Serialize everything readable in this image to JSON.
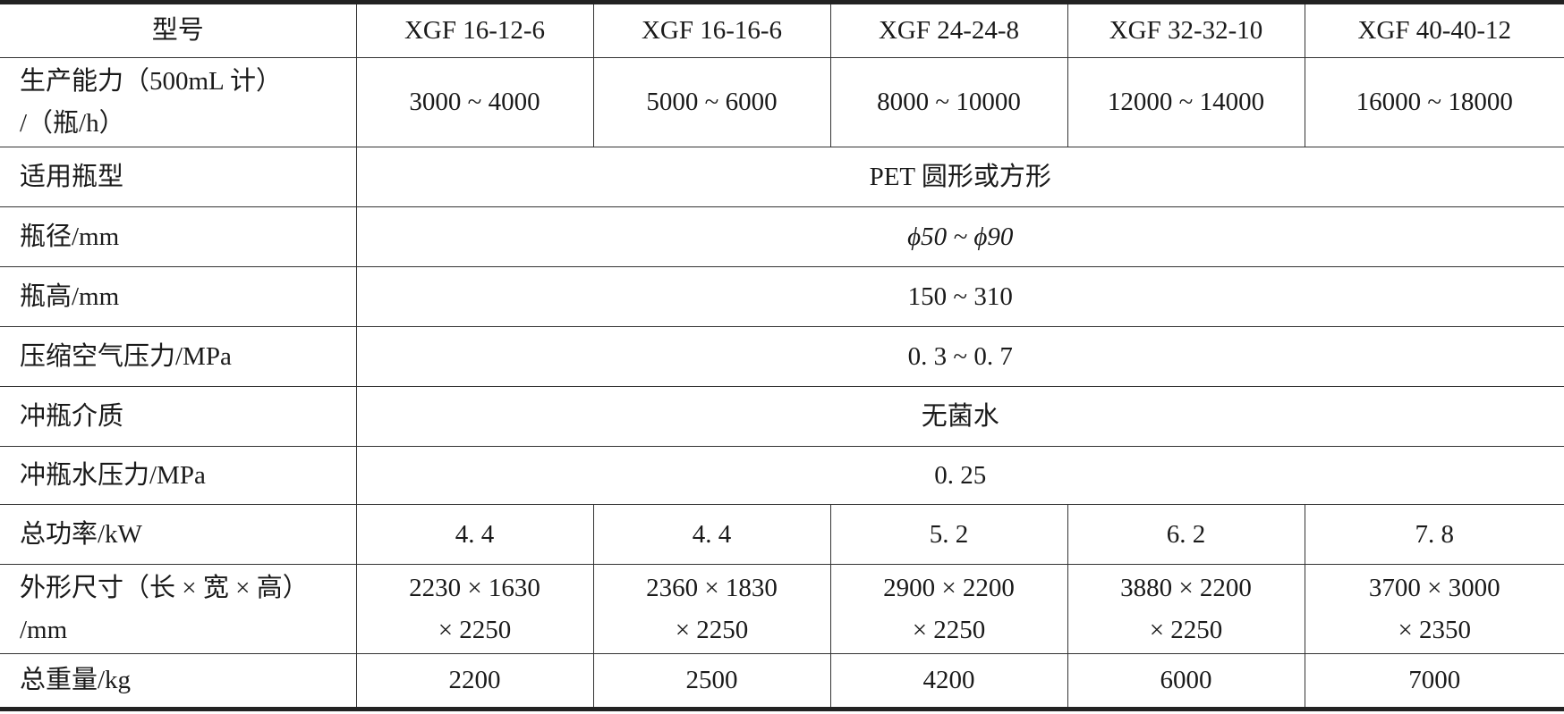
{
  "header": {
    "label": "型号",
    "models": [
      "XGF 16-12-6",
      "XGF 16-16-6",
      "XGF 24-24-8",
      "XGF 32-32-10",
      "XGF 40-40-12"
    ]
  },
  "capacity": {
    "label_line1": "生产能力（500mL 计）",
    "label_line2": "/（瓶/h）",
    "values": [
      "3000 ~ 4000",
      "5000 ~ 6000",
      "8000 ~ 10000",
      "12000 ~ 14000",
      "16000 ~ 18000"
    ]
  },
  "shared_rows": [
    {
      "label": "适用瓶型",
      "value": "PET 圆形或方形"
    },
    {
      "label": "瓶径/mm",
      "value": "ϕ50 ~ ϕ90"
    },
    {
      "label": "瓶高/mm",
      "value": "150 ~ 310"
    },
    {
      "label": "压缩空气压力/MPa",
      "value": "0. 3 ~ 0. 7"
    },
    {
      "label": "冲瓶介质",
      "value": "无菌水"
    },
    {
      "label": "冲瓶水压力/MPa",
      "value": "0. 25"
    }
  ],
  "power": {
    "label": "总功率/kW",
    "values": [
      "4. 4",
      "4. 4",
      "5. 2",
      "6. 2",
      "7. 8"
    ]
  },
  "dimensions": {
    "label_line1": "外形尺寸（长 × 宽 × 高）",
    "label_line2": "/mm",
    "line1": [
      "2230 × 1630",
      "2360 × 1830",
      "2900 × 2200",
      "3880 × 2200",
      "3700 × 3000"
    ],
    "line2": [
      "× 2250",
      "× 2250",
      "× 2250",
      "× 2250",
      "× 2350"
    ]
  },
  "weight": {
    "label": "总重量/kg",
    "values": [
      "2200",
      "2500",
      "4200",
      "6000",
      "7000"
    ]
  }
}
